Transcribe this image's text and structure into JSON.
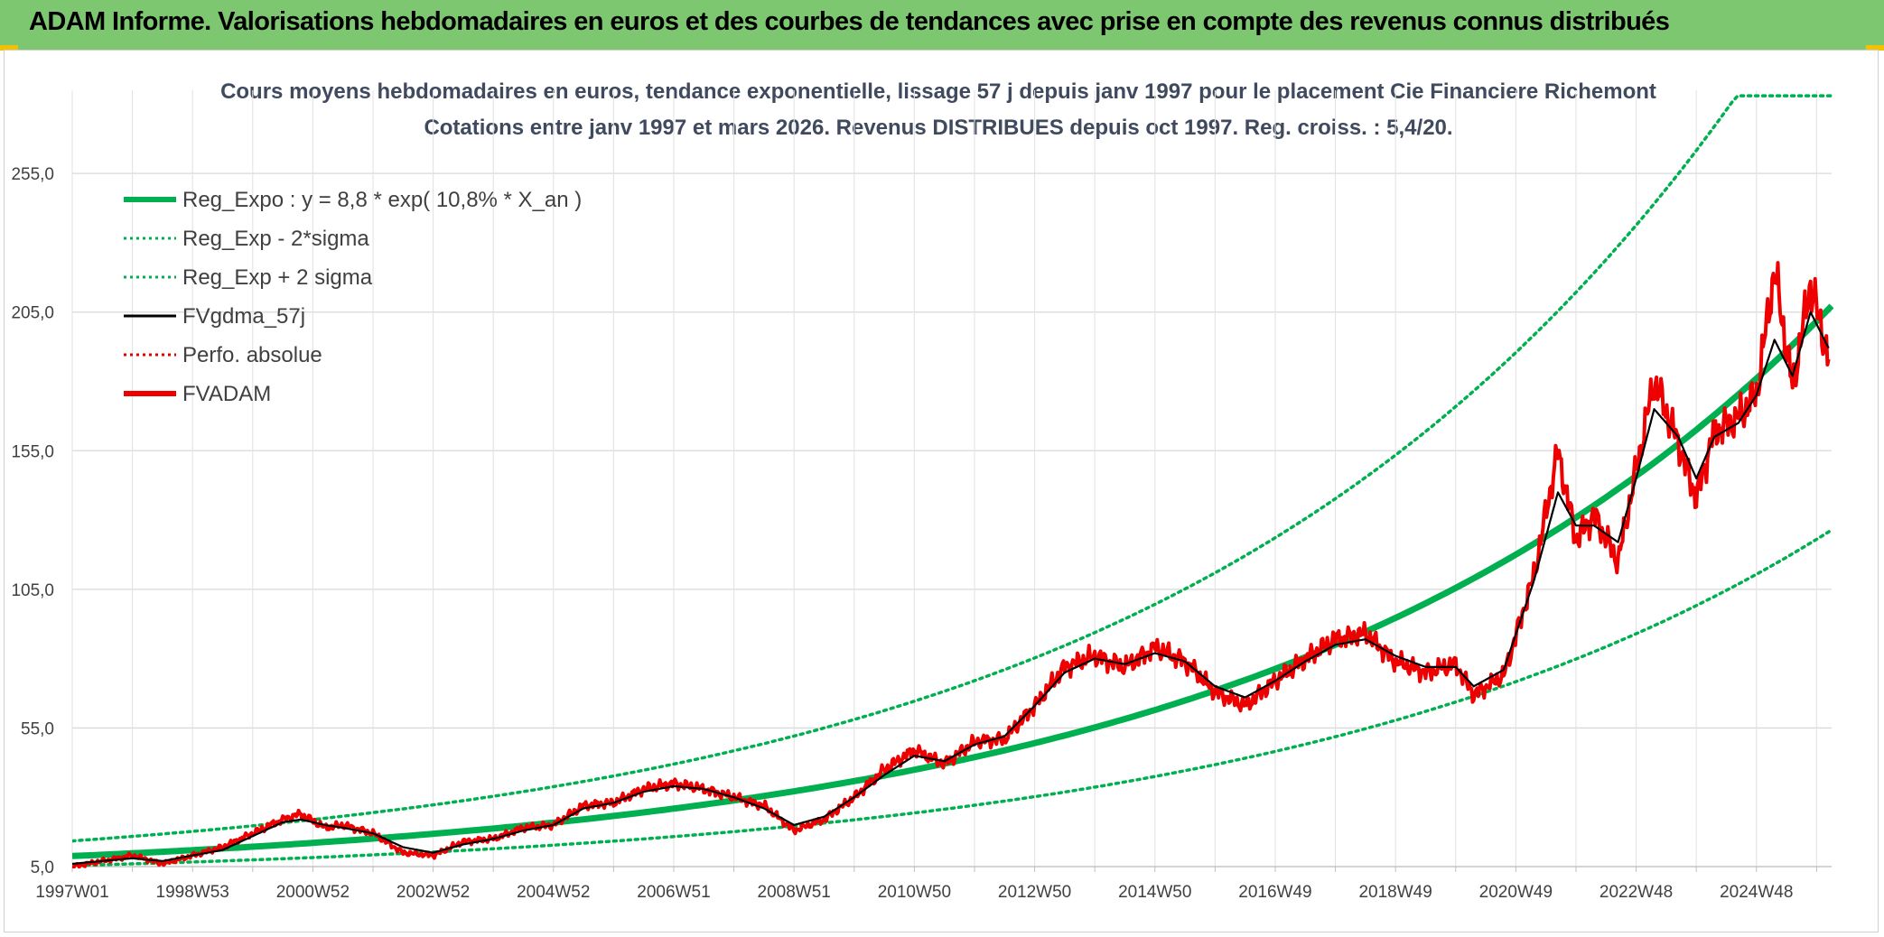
{
  "header": {
    "title": "ADAM Informe. Valorisations hebdomadaires en euros et des courbes de tendances avec prise en compte des revenus connus distribués"
  },
  "chart_data": {
    "type": "line",
    "title": "Cours moyens hebdomadaires en euros, tendance exponentielle, lissage 57 j depuis janv 1997 pour le placement Cie Financiere Richemont",
    "subtitle": "Cotations entre janv 1997 et mars 2026. Revenus DISTRIBUES depuis oct 1997. Reg. croiss. : 5,4/20.",
    "ylim": [
      5,
      285
    ],
    "y_ticks": [
      "5,0",
      "55,0",
      "105,0",
      "155,0",
      "205,0",
      "255,0"
    ],
    "x_tick_labels": [
      "1997W01",
      "1998W53",
      "2000W52",
      "2002W52",
      "2004W52",
      "2006W51",
      "2008W51",
      "2010W50",
      "2012W50",
      "2014W50",
      "2016W49",
      "2018W49",
      "2020W49",
      "2022W48",
      "2024W48"
    ],
    "x_range": [
      1997.0,
      2026.25
    ],
    "grid": true,
    "legend_position": "top-left",
    "legend": [
      {
        "label": "Reg_Expo : y = 8,8 * exp( 10,8% *  X_an )",
        "color": "#00b050",
        "style": "solid-thick"
      },
      {
        "label": "Reg_Exp - 2*sigma",
        "color": "#00b050",
        "style": "dotted"
      },
      {
        "label": "Reg_Exp + 2 sigma",
        "color": "#00b050",
        "style": "dotted"
      },
      {
        "label": "FVgdma_57j",
        "color": "#000000",
        "style": "solid"
      },
      {
        "label": "Perfo. absolue",
        "color": "#e00000",
        "style": "dotted"
      },
      {
        "label": "FVADAM",
        "color": "#ee0000",
        "style": "solid-thick"
      }
    ],
    "regression": {
      "a": 8.8,
      "growth_rate": 0.108,
      "x_start": 1997.0
    },
    "sigma_bands": {
      "lower_factor": 0.61,
      "upper_factor": 1.62
    },
    "series": [
      {
        "name": "FVADAM",
        "x": [
          1997.0,
          1997.5,
          1998.0,
          1998.5,
          1999.0,
          1999.5,
          2000.0,
          2000.5,
          2000.8,
          2001.2,
          2001.5,
          2002.0,
          2002.5,
          2003.0,
          2003.5,
          2004.0,
          2004.5,
          2005.0,
          2005.5,
          2006.0,
          2006.5,
          2007.0,
          2007.5,
          2008.0,
          2008.5,
          2009.0,
          2009.5,
          2010.0,
          2010.5,
          2011.0,
          2011.5,
          2012.0,
          2012.5,
          2013.0,
          2013.5,
          2014.0,
          2014.5,
          2015.0,
          2015.5,
          2016.0,
          2016.5,
          2017.0,
          2017.5,
          2018.0,
          2018.5,
          2019.0,
          2019.5,
          2020.0,
          2020.3,
          2020.8,
          2021.3,
          2021.7,
          2022.0,
          2022.3,
          2022.7,
          2023.0,
          2023.3,
          2023.7,
          2024.0,
          2024.3,
          2024.7,
          2025.0,
          2025.3,
          2025.6,
          2025.9,
          2026.2
        ],
        "y": [
          5,
          7,
          9,
          6,
          9,
          12,
          17,
          22,
          24,
          19,
          20,
          17,
          10,
          9,
          14,
          15,
          19,
          20,
          27,
          28,
          33,
          35,
          33,
          30,
          27,
          18,
          22,
          30,
          40,
          47,
          42,
          50,
          51,
          63,
          77,
          81,
          77,
          84,
          79,
          68,
          63,
          72,
          80,
          87,
          89,
          79,
          75,
          78,
          67,
          74,
          110,
          155,
          123,
          132,
          115,
          148,
          180,
          158,
          138,
          162,
          167,
          175,
          220,
          178,
          215,
          188
        ]
      },
      {
        "name": "FVgdma_57j",
        "x": [
          1997.0,
          1997.5,
          1998.0,
          1998.5,
          1999.0,
          1999.5,
          2000.0,
          2000.5,
          2000.8,
          2001.2,
          2001.5,
          2002.0,
          2002.5,
          2003.0,
          2003.5,
          2004.0,
          2004.5,
          2005.0,
          2005.5,
          2006.0,
          2006.5,
          2007.0,
          2007.5,
          2008.0,
          2008.5,
          2009.0,
          2009.5,
          2010.0,
          2010.5,
          2011.0,
          2011.5,
          2012.0,
          2012.5,
          2013.0,
          2013.5,
          2014.0,
          2014.5,
          2015.0,
          2015.5,
          2016.0,
          2016.5,
          2017.0,
          2017.5,
          2018.0,
          2018.5,
          2019.0,
          2019.5,
          2020.0,
          2020.3,
          2020.8,
          2021.3,
          2021.7,
          2022.0,
          2022.3,
          2022.7,
          2023.0,
          2023.3,
          2023.7,
          2024.0,
          2024.3,
          2024.7,
          2025.0,
          2025.3,
          2025.6,
          2025.9,
          2026.2
        ],
        "y": [
          6,
          7,
          8,
          7,
          9,
          11,
          16,
          21,
          22,
          20,
          19,
          17,
          12,
          10,
          13,
          15,
          18,
          20,
          26,
          28,
          32,
          34,
          33,
          30,
          26,
          20,
          23,
          30,
          38,
          45,
          43,
          49,
          52,
          63,
          75,
          80,
          78,
          82,
          79,
          70,
          66,
          72,
          79,
          85,
          87,
          81,
          77,
          77,
          70,
          76,
          108,
          140,
          128,
          128,
          122,
          145,
          170,
          160,
          145,
          160,
          165,
          175,
          195,
          182,
          205,
          192
        ]
      }
    ]
  }
}
